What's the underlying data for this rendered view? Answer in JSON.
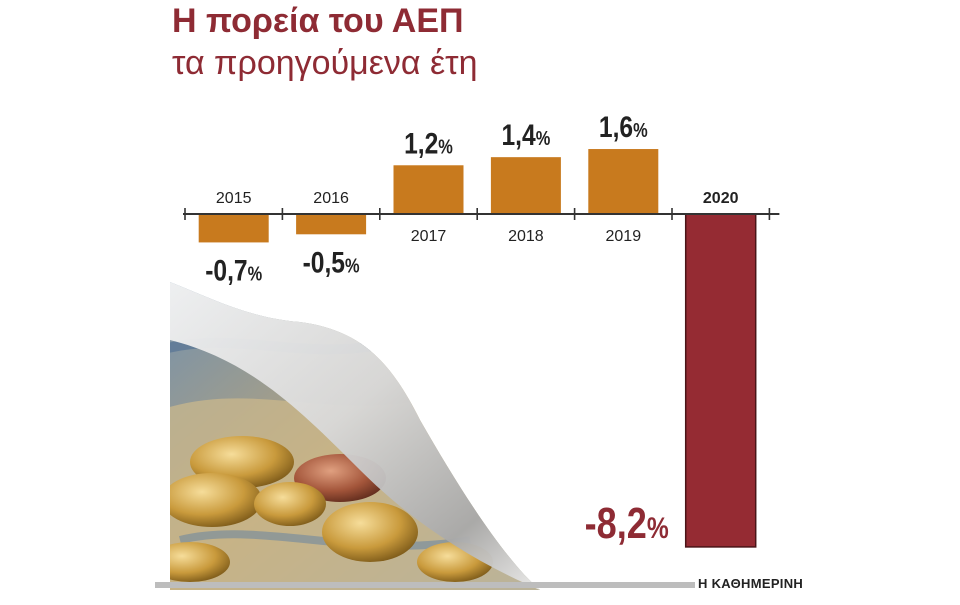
{
  "header": {
    "title": "Η πορεία του ΑΕΠ",
    "subtitle": "τα προηγούμενα έτη"
  },
  "footer": {
    "source": "Η ΚΑΘΗΜΕΡΙΝΗ"
  },
  "colors": {
    "title": "#8e2b34",
    "bar_past": "#c87a1e",
    "bar_2020": "#952b33",
    "text": "#222222",
    "value_2020": "#8e2b34"
  },
  "chart_data": {
    "type": "bar",
    "title": "Η πορεία του ΑΕΠ",
    "subtitle": "τα προηγούμενα έτη",
    "categories": [
      "2015",
      "2016",
      "2017",
      "2018",
      "2019",
      "2020"
    ],
    "values": [
      -0.7,
      -0.5,
      1.2,
      1.4,
      1.6,
      -8.2
    ],
    "value_labels": [
      "-0,7%",
      "-0,5%",
      "1,2%",
      "1,4%",
      "1,6%",
      "-8,2%"
    ],
    "highlight_category": "2020",
    "ylim": [
      -8.2,
      1.6
    ],
    "xlabel": "",
    "ylabel": "",
    "grid": false,
    "legend": "none"
  }
}
